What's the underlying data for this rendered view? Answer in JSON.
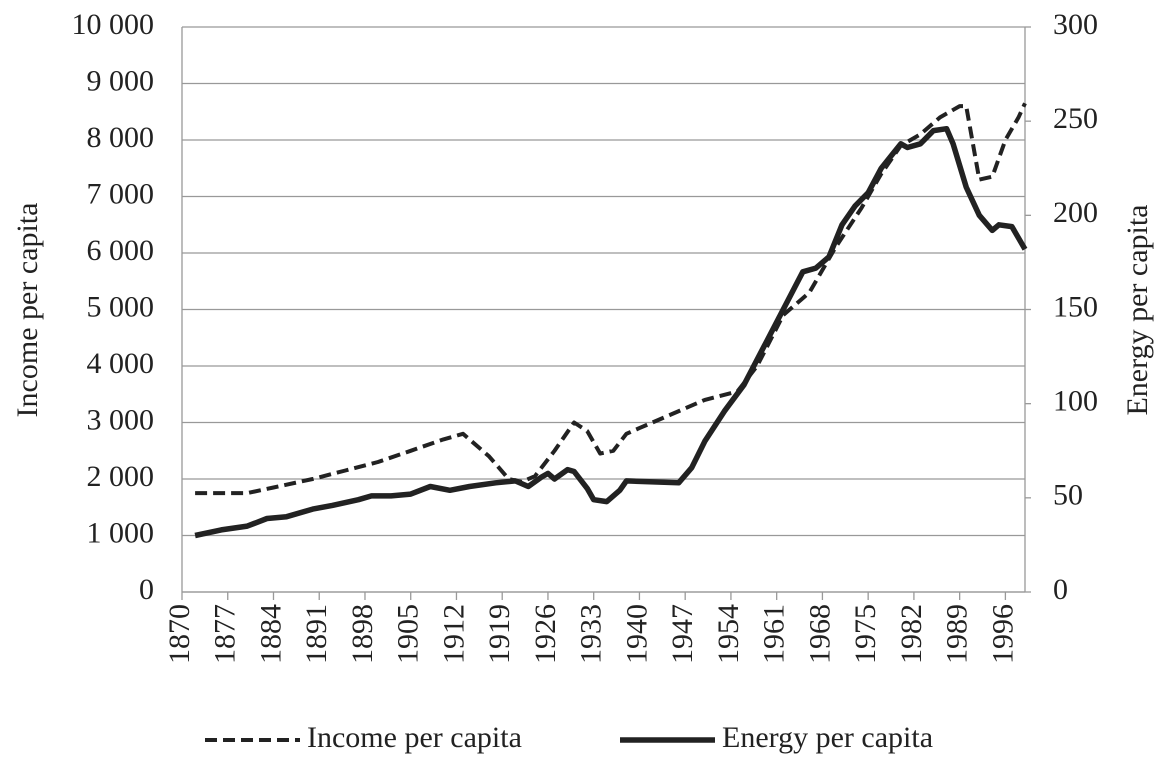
{
  "chart_data": {
    "type": "line",
    "x": [
      1872,
      1876,
      1880,
      1883,
      1884,
      1886,
      1890,
      1893,
      1895,
      1897,
      1899,
      1900,
      1902,
      1905,
      1908,
      1910,
      1911,
      1913,
      1914,
      1917,
      1918,
      1920,
      1921,
      1922,
      1923,
      1924,
      1925,
      1926,
      1927,
      1929,
      1930,
      1932,
      1933,
      1934,
      1935,
      1936,
      1937,
      1938,
      1940,
      1945,
      1946,
      1948,
      1950,
      1953,
      1955,
      1956,
      1958,
      1959,
      1962,
      1965,
      1966,
      1967,
      1969,
      1970,
      1971,
      1973,
      1974,
      1975,
      1977,
      1980,
      1981,
      1983,
      1985,
      1986,
      1987,
      1988,
      1989,
      1990,
      1992,
      1994,
      1995,
      1996,
      1997,
      1998,
      1999
    ],
    "series": [
      {
        "name": "Income per capita",
        "color": "#222222",
        "dash": true,
        "values": [
          1750,
          1750,
          1750,
          null,
          1850,
          null,
          2000,
          null,
          2150,
          null,
          null,
          2300,
          null,
          2500,
          null,
          2700,
          null,
          2800,
          null,
          2400,
          null,
          2000,
          null,
          1950,
          null,
          2050,
          null,
          null,
          2500,
          null,
          3000,
          2850,
          null,
          2450,
          null,
          2500,
          null,
          2800,
          2900,
          3150,
          null,
          null,
          3400,
          null,
          3550,
          null,
          4000,
          null,
          4900,
          null,
          5300,
          null,
          null,
          6100,
          null,
          null,
          6800,
          null,
          7400,
          7900,
          null,
          8100,
          null,
          8400,
          null,
          null,
          8600,
          8600,
          7300,
          7350,
          null,
          8000,
          null,
          8400,
          8650
        ]
      },
      {
        "name": "Energy per capita",
        "color": "#222222",
        "dash": false,
        "axis": "y2",
        "values": [
          30,
          33,
          35,
          39,
          null,
          40,
          44,
          46,
          null,
          49,
          51,
          null,
          51,
          52,
          56,
          null,
          54,
          null,
          56,
          null,
          58,
          null,
          59,
          null,
          56,
          null,
          61,
          63,
          60,
          65,
          64,
          55,
          49,
          null,
          48,
          null,
          54,
          59,
          null,
          null,
          58,
          66,
          80,
          96,
          null,
          110,
          null,
          130,
          150,
          170,
          null,
          172,
          178,
          null,
          195,
          205,
          null,
          212,
          225,
          238,
          236,
          238,
          245,
          null,
          246,
          238,
          null,
          215,
          200,
          192,
          195,
          null,
          194,
          null,
          182
        ]
      }
    ],
    "xlim": [
      1870,
      1999
    ],
    "xticks": [
      1870,
      1877,
      1884,
      1891,
      1898,
      1905,
      1912,
      1919,
      1926,
      1933,
      1940,
      1947,
      1954,
      1961,
      1968,
      1975,
      1982,
      1989,
      1996
    ],
    "ylim": [
      0,
      10000
    ],
    "yticks": [
      0,
      {
        "value": 1000,
        "label": "1 000"
      },
      {
        "value": 2000,
        "label": "2 000"
      },
      {
        "value": 3000,
        "label": "3 000"
      },
      {
        "value": 4000,
        "label": "4 000"
      },
      {
        "value": 5000,
        "label": "5 000"
      },
      {
        "value": 6000,
        "label": "6 000"
      },
      {
        "value": 7000,
        "label": "7 000"
      },
      {
        "value": 8000,
        "label": "8 000"
      },
      {
        "value": 9000,
        "label": "9 000"
      },
      {
        "value": 10000,
        "label": "10 000"
      }
    ],
    "y2lim": [
      0,
      300
    ],
    "y2ticks": [
      0,
      50,
      100,
      150,
      200,
      250,
      300
    ],
    "ylabel": "Income per capita",
    "y2label": "Energy per capita",
    "grid": true,
    "legend": "bottom"
  }
}
